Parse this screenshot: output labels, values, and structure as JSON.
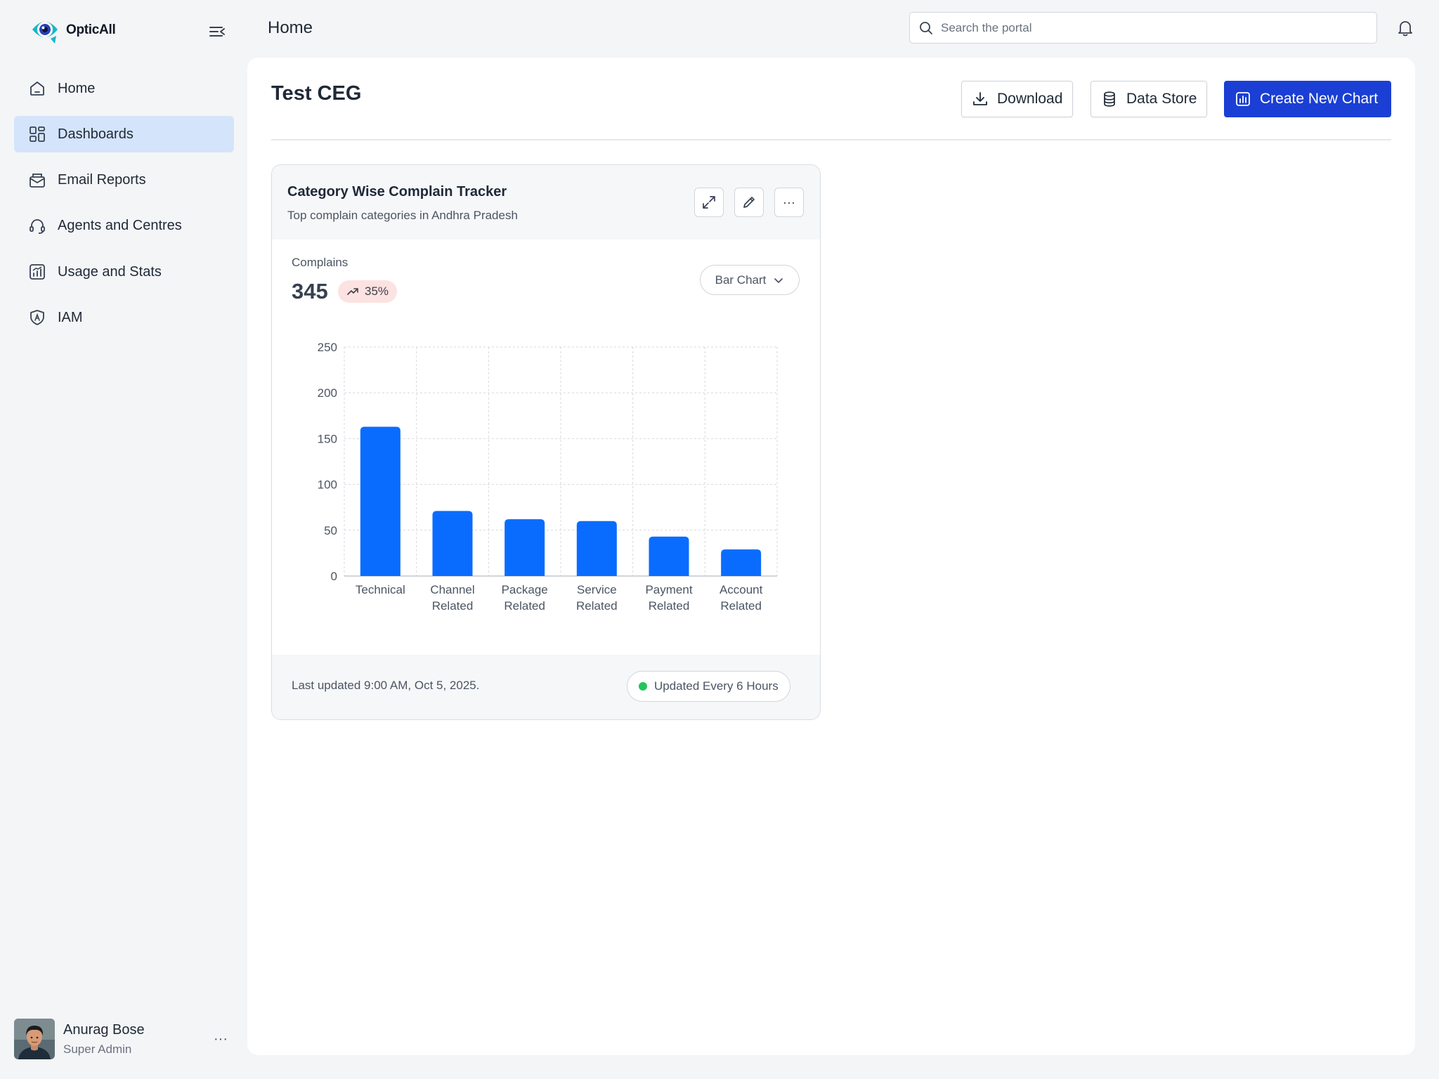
{
  "app": {
    "name": "OpticAll",
    "brand_color": "#1ab3c4",
    "accent_color": "#1b3fd4"
  },
  "sidebar": {
    "items": [
      {
        "label": "Home",
        "icon": "home-icon",
        "active": false
      },
      {
        "label": "Dashboards",
        "icon": "dashboard-icon",
        "active": true
      },
      {
        "label": "Email Reports",
        "icon": "email-report-icon",
        "active": false
      },
      {
        "label": "Agents and Centres",
        "icon": "headset-icon",
        "active": false
      },
      {
        "label": "Usage and Stats",
        "icon": "stats-icon",
        "active": false
      },
      {
        "label": "IAM",
        "icon": "shield-icon",
        "active": false
      }
    ],
    "user": {
      "name": "Anurag Bose",
      "role": "Super Admin",
      "more": "···"
    }
  },
  "topbar": {
    "title": "Home",
    "search_placeholder": "Search the portal"
  },
  "page": {
    "title": "Test CEG",
    "buttons": {
      "download": "Download",
      "data_store": "Data Store",
      "create": "Create New Chart"
    }
  },
  "card": {
    "title": "Category Wise Complain Tracker",
    "subtitle": "Top complain categories in Andhra Pradesh",
    "metric_label": "Complains",
    "metric_value": "345",
    "trend": "35%",
    "chart_type_select": "Bar Chart",
    "last_updated": "Last updated 9:00 AM, Oct 5, 2025.",
    "refresh_status": "Updated Every 6 Hours",
    "more_menu": "···"
  },
  "chart_data": {
    "type": "bar",
    "categories": [
      [
        "Technical"
      ],
      [
        "Channel",
        "Related"
      ],
      [
        "Package",
        "Related"
      ],
      [
        "Service",
        "Related"
      ],
      [
        "Payment",
        "Related"
      ],
      [
        "Account",
        "Related"
      ]
    ],
    "values": [
      163,
      71,
      62,
      60,
      43,
      29
    ],
    "yticks": [
      0,
      50,
      100,
      150,
      200,
      250
    ],
    "ylim": [
      0,
      250
    ],
    "grid": true,
    "bar_color": "#0a6cff"
  }
}
